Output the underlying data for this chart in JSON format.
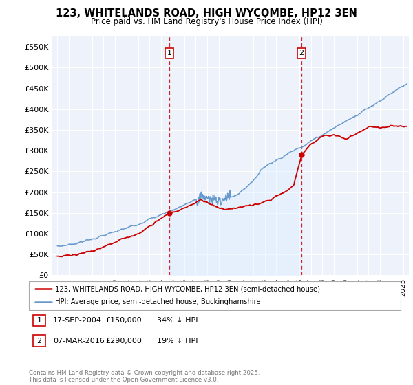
{
  "title1": "123, WHITELANDS ROAD, HIGH WYCOMBE, HP12 3EN",
  "title2": "Price paid vs. HM Land Registry's House Price Index (HPI)",
  "ylabel_ticks": [
    "£0",
    "£50K",
    "£100K",
    "£150K",
    "£200K",
    "£250K",
    "£300K",
    "£350K",
    "£400K",
    "£450K",
    "£500K",
    "£550K"
  ],
  "ytick_vals": [
    0,
    50000,
    100000,
    150000,
    200000,
    250000,
    300000,
    350000,
    400000,
    450000,
    500000,
    550000
  ],
  "ylim": [
    0,
    575000
  ],
  "xlim_start": 1994.5,
  "xlim_end": 2025.5,
  "xticks": [
    1995,
    1996,
    1997,
    1998,
    1999,
    2000,
    2001,
    2002,
    2003,
    2004,
    2005,
    2006,
    2007,
    2008,
    2009,
    2010,
    2011,
    2012,
    2013,
    2014,
    2015,
    2016,
    2017,
    2018,
    2019,
    2020,
    2021,
    2022,
    2023,
    2024,
    2025
  ],
  "marker1_x": 2004.72,
  "marker1_y": 150000,
  "marker1_label": "1",
  "marker2_x": 2016.18,
  "marker2_y": 290000,
  "marker2_label": "2",
  "red_line_color": "#cc0000",
  "blue_line_color": "#6699cc",
  "blue_fill_color": "#ddeeff",
  "vline_color": "#cc0000",
  "plot_bg_color": "#eef2fb",
  "legend_label_red": "123, WHITELANDS ROAD, HIGH WYCOMBE, HP12 3EN (semi-detached house)",
  "legend_label_blue": "HPI: Average price, semi-detached house, Buckinghamshire",
  "note1_label": "1",
  "note1_date": "17-SEP-2004",
  "note1_price": "£150,000",
  "note1_hpi": "34% ↓ HPI",
  "note2_label": "2",
  "note2_date": "07-MAR-2016",
  "note2_price": "£290,000",
  "note2_hpi": "19% ↓ HPI",
  "footer": "Contains HM Land Registry data © Crown copyright and database right 2025.\nThis data is licensed under the Open Government Licence v3.0."
}
